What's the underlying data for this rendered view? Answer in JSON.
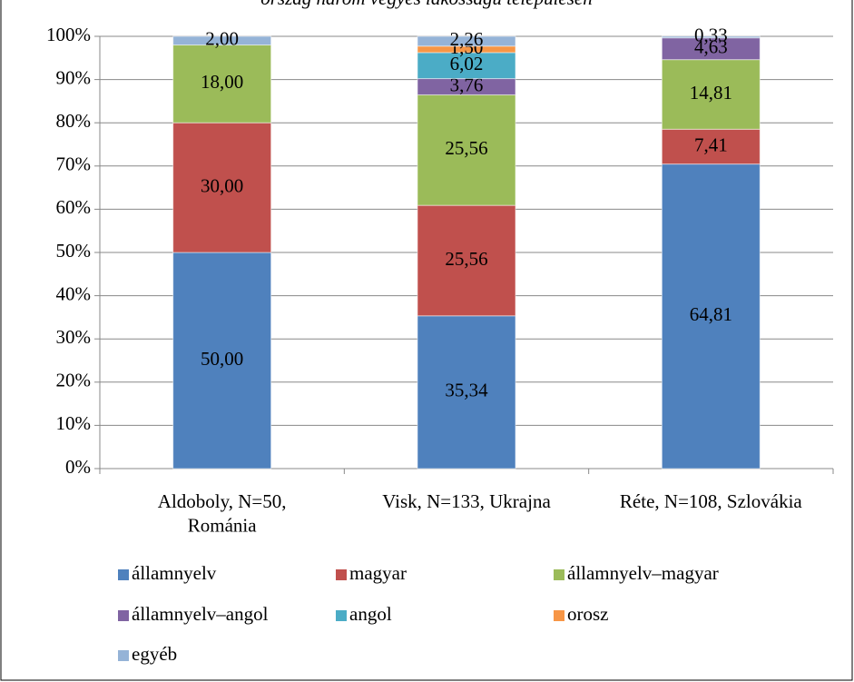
{
  "chart_data": {
    "type": "bar",
    "stacking": "percent",
    "title": "ország három vegyes lakosságú településen",
    "categories": [
      "Aldoboly, N=50,\nRománia",
      "Visk, N=133, Ukrajna",
      "Réte, N=108, Szlovákia"
    ],
    "series": [
      {
        "name": "államnyelv",
        "color": "#4f81bd",
        "values": [
          50.0,
          35.34,
          64.81
        ],
        "value_labels": [
          "50,00",
          "35,34",
          "64,81"
        ]
      },
      {
        "name": "magyar",
        "color": "#c0504d",
        "values": [
          30.0,
          25.56,
          7.41
        ],
        "value_labels": [
          "30,00",
          "25,56",
          "7,41"
        ]
      },
      {
        "name": "államnyelv–magyar",
        "color": "#9bbb59",
        "values": [
          18.0,
          25.56,
          14.81
        ],
        "value_labels": [
          "18,00",
          "25,56",
          "14,81"
        ]
      },
      {
        "name": "államnyelv–angol",
        "color": "#8064a2",
        "values": [
          null,
          3.76,
          4.63
        ],
        "value_labels": [
          null,
          "3,76",
          "4,63"
        ]
      },
      {
        "name": "angol",
        "color": "#4bacc6",
        "values": [
          null,
          6.02,
          null
        ],
        "value_labels": [
          null,
          "6,02",
          null
        ]
      },
      {
        "name": "orosz",
        "color": "#f79646",
        "values": [
          null,
          1.5,
          null
        ],
        "value_labels": [
          null,
          "1,50",
          null
        ]
      },
      {
        "name": "egyéb",
        "color": "#95b3d7",
        "values": [
          2.0,
          2.26,
          0.33
        ],
        "value_labels": [
          "2,00",
          "2,26",
          "0,33"
        ]
      }
    ],
    "ylim": [
      0,
      100
    ],
    "yticks": [
      {
        "value": 0,
        "label": "0%"
      },
      {
        "value": 10,
        "label": "10%"
      },
      {
        "value": 20,
        "label": "20%"
      },
      {
        "value": 30,
        "label": "30%"
      },
      {
        "value": 40,
        "label": "40%"
      },
      {
        "value": 50,
        "label": "50%"
      },
      {
        "value": 60,
        "label": "60%"
      },
      {
        "value": 70,
        "label": "70%"
      },
      {
        "value": 80,
        "label": "80%"
      },
      {
        "value": 90,
        "label": "90%"
      },
      {
        "value": 100,
        "label": "100%"
      }
    ],
    "grid": true,
    "legend": "bottom"
  }
}
